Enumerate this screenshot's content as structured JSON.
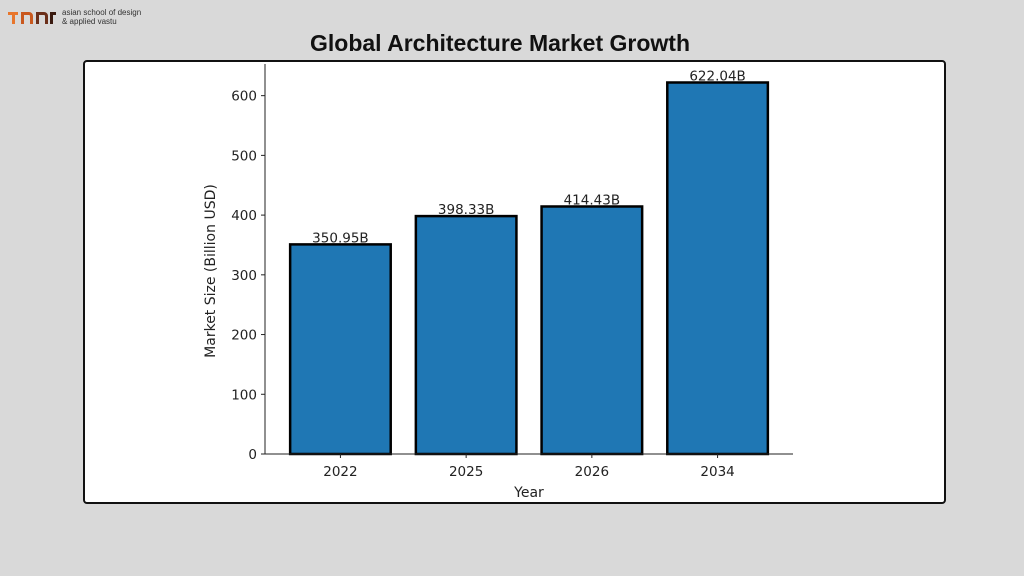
{
  "logo": {
    "text_line1": "asian school of design",
    "text_line2": "& applied vastu",
    "colors": [
      "#e8762c",
      "#5a2a1a"
    ]
  },
  "chart_data": {
    "type": "bar",
    "title": "Global Architecture Market Growth",
    "categories": [
      "2022",
      "2025",
      "2026",
      "2034"
    ],
    "values": [
      350.95,
      398.33,
      414.43,
      622.04
    ],
    "data_labels": [
      "350.95B",
      "398.33B",
      "414.43B",
      "622.04B"
    ],
    "xlabel": "Year",
    "ylabel": "Market Size (Billion USD)",
    "ylim": [
      0,
      653
    ],
    "yticks": [
      0,
      100,
      200,
      300,
      400,
      500,
      600
    ],
    "bar_color": "#1f77b4",
    "edge_color": "#000000",
    "grid": false
  }
}
